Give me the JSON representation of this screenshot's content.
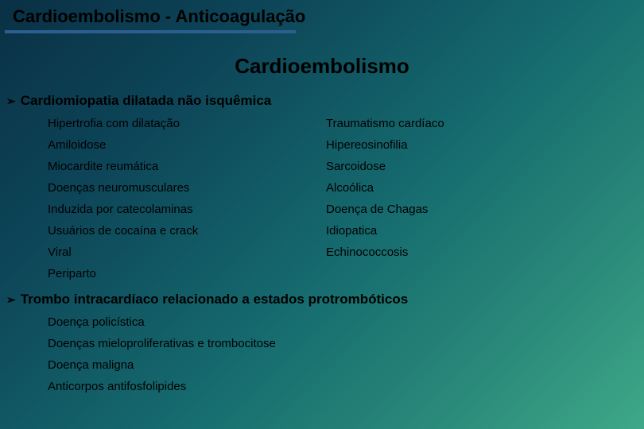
{
  "header": "Cardioembolismo - Anticoagulação",
  "title": "Cardioembolismo",
  "section1": {
    "heading": "Cardiomiopatia dilatada não isquêmica",
    "col1": [
      "Hipertrofia com dilatação",
      "Amiloidose",
      "Miocardite reumática",
      "Doenças neuromusculares",
      "Induzida por catecolaminas",
      "Usuários de cocaína e crack",
      "Viral",
      "Periparto"
    ],
    "col2": [
      "Traumatismo cardíaco",
      "Hipereosinofilia",
      "Sarcoidose",
      "Alcoólica",
      "Doença de Chagas",
      "Idiopatica",
      "Echinococcosis",
      ""
    ]
  },
  "section2": {
    "heading": "Trombo intracardíaco relacionado a estados protrombóticos",
    "items": [
      "Doença policística",
      "Doenças mieloproliferativas e trombocitose",
      "Doença maligna",
      "Anticorpos antifosfolipides"
    ]
  },
  "colors": {
    "underline": "#2b5f8f",
    "text": "#000000"
  }
}
